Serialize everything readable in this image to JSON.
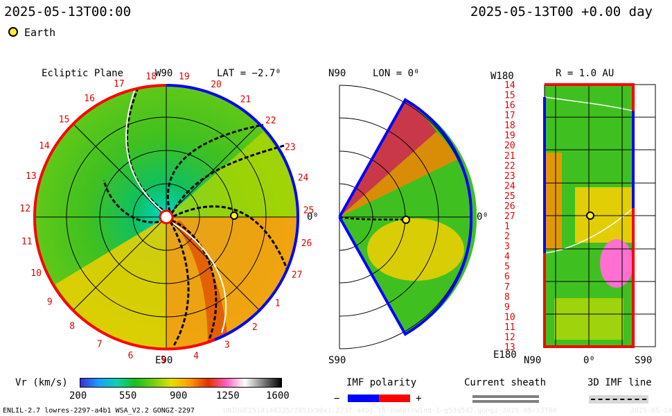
{
  "header": {
    "left_timestamp": "2025-05-13T00:00",
    "right_timestamp": "2025-05-13T00 +0.00 day",
    "legend_label": "Earth"
  },
  "ecliptic": {
    "title": "Ecliptic Plane",
    "top_label": "W90",
    "bottom_label": "E90",
    "right_label": "0⁰",
    "lat_label": "LAT = −2.7⁰",
    "carrington_numbers": [
      "19",
      "20",
      "21",
      "22",
      "23",
      "24",
      "25",
      "26",
      "27",
      "1",
      "2",
      "3",
      "4",
      "5",
      "6",
      "7",
      "8",
      "9",
      "10",
      "11",
      "12",
      "13",
      "14",
      "15",
      "16",
      "17",
      "18"
    ]
  },
  "meridional": {
    "top_label": "N90",
    "bottom_label": "S90",
    "right_label": "0⁰",
    "lon_label": "LON = 0⁰"
  },
  "synoptic": {
    "top_label": "W180",
    "bottom_label": "E180",
    "r_label": "R = 1.0 AU",
    "x_left": "N90",
    "x_mid": "0⁰",
    "x_right": "S90",
    "rows": [
      "14",
      "15",
      "16",
      "17",
      "18",
      "19",
      "20",
      "21",
      "22",
      "23",
      "24",
      "25",
      "26",
      "27",
      "1",
      "2",
      "3",
      "4",
      "5",
      "6",
      "7",
      "8",
      "9",
      "10",
      "11",
      "12",
      "13"
    ]
  },
  "colorbar": {
    "label": "Vr (km/s)",
    "ticks": [
      "200",
      "550",
      "900",
      "1250",
      "1600"
    ],
    "range": [
      200,
      1600
    ],
    "stops": [
      "#3a2fd8",
      "#1aa0ff",
      "#10d0b0",
      "#18c020",
      "#70d010",
      "#e8e000",
      "#ff9a00",
      "#e03000",
      "#ff60c0",
      "#ffffff",
      "#808080",
      "#000000"
    ]
  },
  "keys": {
    "imf_title": "IMF polarity",
    "imf_minus": "−",
    "imf_plus": "+",
    "imf_minus_color": "#0000ff",
    "imf_plus_color": "#ff0000",
    "sheath_title": "Current sheath",
    "imf_line_title": "3D IMF line"
  },
  "footer": {
    "model_info": "ENLIL-2.7 lowres-2297-a4b1 WSA_V2.2 GONGZ-2297",
    "run_id": "UNIQUE2514140335/2051x90x1.2237-a4b1.16-noepicwind-l-g53q5d2.gongz-2025-05-13T00",
    "date_stub": "2025-05-14"
  }
}
